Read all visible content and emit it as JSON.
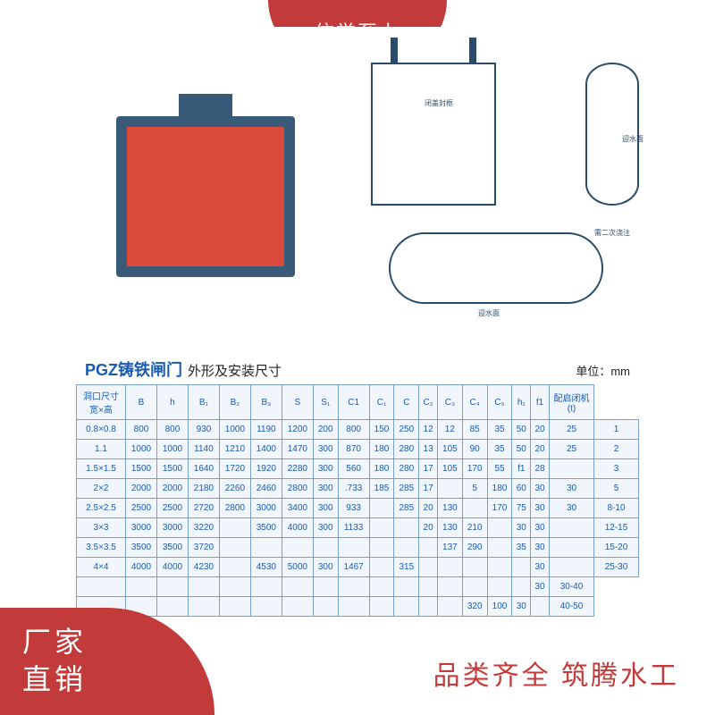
{
  "top_badge": "信誉至上",
  "bottom_left_line1": "厂家",
  "bottom_left_line2": "直销",
  "bottom_right": "品类齐全  筑腾水工",
  "title_main": "PGZ铸铁闸门",
  "title_sub": "外形及安装尺寸",
  "unit_label": "单位：mm",
  "diagram_labels": {
    "front_annot": "闭盖封框",
    "side_annot": "迎水面",
    "top_annot1": "需二次浇注",
    "top_annot2": "迎水面"
  },
  "table": {
    "columns": [
      "洞口尺寸\n宽×高",
      "B",
      "h",
      "B₁",
      "B₂",
      "B₃",
      "S",
      "S₁",
      "C1",
      "C₁",
      "C",
      "C₂",
      "C₃",
      "C₄",
      "C₅",
      "h₁",
      "f1",
      "配启闭机\n(t)"
    ],
    "rows": [
      [
        "0.8×0.8",
        "800",
        "800",
        "930",
        "1000",
        "1190",
        "1200",
        "200",
        "800",
        "150",
        "250",
        "12",
        "12",
        "85",
        "35",
        "50",
        "20",
        "25",
        "1"
      ],
      [
        "1.1",
        "1000",
        "1000",
        "1140",
        "1210",
        "1400",
        "1470",
        "300",
        "870",
        "180",
        "280",
        "13",
        "105",
        "90",
        "35",
        "50",
        "20",
        "25",
        "2"
      ],
      [
        "1.5×1.5",
        "1500",
        "1500",
        "1640",
        "1720",
        "1920",
        "2280",
        "300",
        "560",
        "180",
        "280",
        "17",
        "105",
        "170",
        "55",
        "f1",
        "28",
        "",
        "3"
      ],
      [
        "2×2",
        "2000",
        "2000",
        "2180",
        "2260",
        "2460",
        "2800",
        "300",
        ".733",
        "185",
        "285",
        "17",
        "",
        "5",
        "180",
        "60",
        "30",
        "30",
        "5"
      ],
      [
        "2.5×2.5",
        "2500",
        "2500",
        "2720",
        "2800",
        "3000",
        "3400",
        "300",
        "933",
        "",
        "285",
        "20",
        "130",
        "",
        "170",
        "75",
        "30",
        "30",
        "8-10"
      ],
      [
        "3×3",
        "3000",
        "3000",
        "3220",
        "",
        "3500",
        "4000",
        "300",
        "1133",
        "",
        "",
        "20",
        "130",
        "210",
        "",
        "30",
        "30",
        "",
        "12-15"
      ],
      [
        "3.5×3.5",
        "3500",
        "3500",
        "3720",
        "",
        "",
        "",
        "",
        "",
        "",
        "",
        "",
        "137",
        "290",
        "",
        "35",
        "30",
        "",
        "15-20"
      ],
      [
        "4×4",
        "4000",
        "4000",
        "4230",
        "",
        "4530",
        "5000",
        "300",
        "1467",
        "",
        "315",
        "",
        "",
        "",
        "",
        "",
        "30",
        "",
        "25-30"
      ],
      [
        "",
        "",
        "",
        "",
        "",
        "",
        "",
        "",
        "",
        "",
        "",
        "",
        "",
        "",
        "",
        "",
        "30",
        "30-40"
      ],
      [
        "",
        "",
        "",
        "",
        "",
        "",
        "",
        "",
        "",
        "",
        "",
        "",
        "",
        "320",
        "100",
        "30",
        "",
        "40-50"
      ]
    ],
    "header_bg": "#f0f6fc",
    "cell_bg": "#f0f6fc",
    "border_color": "#7aa0c8",
    "text_color": "#1a5ab0",
    "font_size": 10
  },
  "colors": {
    "badge_red": "#c33a3a",
    "title_blue": "#1a5ab0",
    "gate_red": "#d94a3a",
    "gate_frame": "#3a5a7a",
    "diagram_line": "#2a4a6a",
    "background": "#ffffff"
  }
}
